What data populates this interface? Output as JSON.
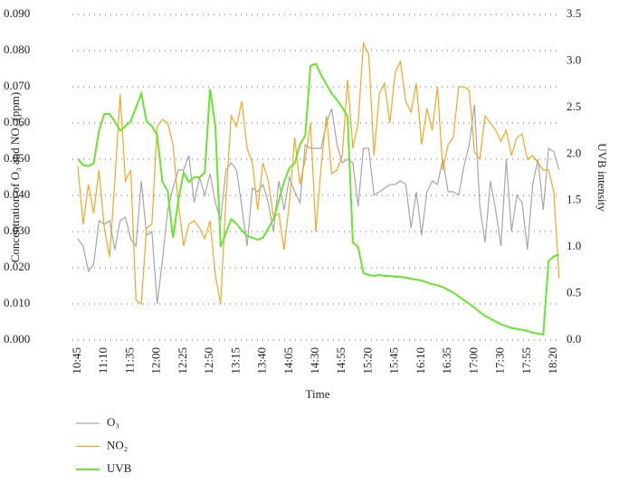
{
  "chart_data": {
    "type": "line",
    "xlabel": "Time",
    "ylabel": "Concentration of O₃ and NO₂ (ppm)",
    "y2label": "UVB intensity",
    "categories": [
      "10:45",
      null,
      null,
      null,
      null,
      "11:10",
      null,
      null,
      null,
      null,
      "11:35",
      null,
      null,
      null,
      null,
      "12:00",
      null,
      null,
      null,
      null,
      "12:25",
      null,
      null,
      null,
      null,
      "12:50",
      null,
      null,
      null,
      null,
      "13:15",
      null,
      null,
      null,
      null,
      "13:40",
      null,
      null,
      null,
      null,
      "14:05",
      null,
      null,
      null,
      null,
      "14:30",
      null,
      null,
      null,
      null,
      "14:55",
      null,
      null,
      null,
      null,
      "15:20",
      null,
      null,
      null,
      null,
      "15:45",
      null,
      null,
      null,
      null,
      "16:10",
      null,
      null,
      null,
      null,
      "16:35",
      null,
      null,
      null,
      null,
      "17:00",
      null,
      null,
      null,
      null,
      "17:30",
      null,
      null,
      null,
      null,
      "17:55",
      null,
      null,
      null,
      null,
      "18:20",
      null
    ],
    "series": [
      {
        "name": "O₃",
        "color": "#a6a6a6",
        "values": [
          0.028,
          0.026,
          0.019,
          0.021,
          0.033,
          0.032,
          0.033,
          0.025,
          0.033,
          0.034,
          0.028,
          0.026,
          0.044,
          0.029,
          0.03,
          0.01,
          0.022,
          0.036,
          0.042,
          0.047,
          0.047,
          0.051,
          0.038,
          0.045,
          0.04,
          0.046,
          0.038,
          0.033,
          0.047,
          0.049,
          0.047,
          0.037,
          0.026,
          0.042,
          0.041,
          0.043,
          0.038,
          0.03,
          0.044,
          0.036,
          0.045,
          0.041,
          0.038,
          0.054,
          0.053,
          0.053,
          0.053,
          0.06,
          0.064,
          0.054,
          0.049,
          0.05,
          0.049,
          0.037,
          0.053,
          0.053,
          0.04,
          0.041,
          0.042,
          0.043,
          0.043,
          0.044,
          0.043,
          0.031,
          0.041,
          0.029,
          0.041,
          0.044,
          0.043,
          0.05,
          0.041,
          0.041,
          0.04,
          0.048,
          0.054,
          0.065,
          0.037,
          0.027,
          0.044,
          0.036,
          0.026,
          0.05,
          0.03,
          0.04,
          0.038,
          0.025,
          0.043,
          0.05,
          0.036,
          0.053,
          0.052,
          0.047
        ]
      },
      {
        "name": "NO₂",
        "color": "#f5a623",
        "values": [
          0.048,
          0.032,
          0.043,
          0.035,
          0.047,
          0.031,
          0.023,
          0.044,
          0.068,
          0.044,
          0.047,
          0.011,
          0.01,
          0.031,
          0.032,
          0.059,
          0.061,
          0.06,
          0.054,
          0.038,
          0.026,
          0.032,
          0.033,
          0.031,
          0.028,
          0.033,
          0.018,
          0.01,
          0.039,
          0.062,
          0.059,
          0.066,
          0.053,
          0.049,
          0.036,
          0.049,
          0.044,
          0.034,
          0.035,
          0.025,
          0.038,
          0.056,
          0.043,
          0.05,
          0.06,
          0.03,
          0.048,
          0.062,
          0.046,
          0.047,
          0.051,
          0.072,
          0.053,
          0.06,
          0.082,
          0.079,
          0.051,
          0.068,
          0.071,
          0.06,
          0.074,
          0.077,
          0.066,
          0.063,
          0.071,
          0.054,
          0.064,
          0.058,
          0.07,
          0.047,
          0.054,
          0.056,
          0.07,
          0.07,
          0.069,
          0.052,
          0.05,
          0.062,
          0.06,
          0.058,
          0.055,
          0.058,
          0.051,
          0.056,
          0.057,
          0.05,
          0.051,
          0.049,
          0.047,
          0.047,
          0.041,
          0.017
        ]
      },
      {
        "name": "UVB",
        "color": "#66e62e",
        "axis": "y2",
        "values": [
          1.95,
          1.88,
          1.87,
          1.9,
          2.25,
          2.43,
          2.43,
          2.35,
          2.25,
          2.3,
          2.35,
          2.5,
          2.65,
          2.35,
          2.3,
          2.2,
          1.7,
          1.6,
          1.1,
          1.5,
          1.8,
          1.7,
          1.75,
          1.75,
          1.8,
          2.7,
          2.3,
          1.0,
          1.15,
          1.3,
          1.25,
          1.18,
          1.12,
          1.1,
          1.08,
          1.1,
          1.2,
          1.3,
          1.5,
          1.7,
          1.85,
          1.9,
          2.1,
          2.2,
          2.95,
          2.97,
          2.85,
          2.75,
          2.65,
          2.58,
          2.5,
          2.4,
          1.05,
          1.0,
          0.72,
          0.7,
          0.69,
          0.7,
          0.69,
          0.69,
          0.68,
          0.68,
          0.67,
          0.66,
          0.65,
          0.64,
          0.62,
          0.6,
          0.59,
          0.57,
          0.54,
          0.51,
          0.47,
          0.43,
          0.39,
          0.35,
          0.3,
          0.26,
          0.23,
          0.2,
          0.17,
          0.15,
          0.13,
          0.12,
          0.11,
          0.1,
          0.08,
          0.07,
          0.06,
          0.85,
          0.9,
          0.92
        ]
      }
    ],
    "ylim": [
      0,
      0.09
    ],
    "yticks": [
      {
        "value": 0,
        "label": "0.000"
      },
      {
        "value": 0.01,
        "label": "0.010"
      },
      {
        "value": 0.02,
        "label": "0.020"
      },
      {
        "value": 0.03,
        "label": "0.030"
      },
      {
        "value": 0.04,
        "label": "0.040"
      },
      {
        "value": 0.05,
        "label": "0.050"
      },
      {
        "value": 0.06,
        "label": "0.060"
      },
      {
        "value": 0.07,
        "label": "0.070"
      },
      {
        "value": 0.08,
        "label": "0.080"
      },
      {
        "value": 0.09,
        "label": "0.090"
      }
    ],
    "y2lim": [
      0,
      3.5
    ],
    "y2ticks": [
      {
        "value": 0,
        "label": "0.0"
      },
      0.5,
      {
        "value": 1,
        "label": "1.0"
      },
      1.5,
      {
        "value": 2,
        "label": "2.0"
      },
      2.5,
      {
        "value": 3,
        "label": "3.0"
      },
      3.5
    ],
    "grid": true
  }
}
